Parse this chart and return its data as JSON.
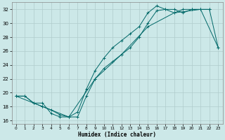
{
  "xlabel": "Humidex (Indice chaleur)",
  "bg_color": "#cce8e8",
  "grid_color": "#b0cccc",
  "line_color": "#006868",
  "xlim": [
    -0.5,
    23.5
  ],
  "ylim": [
    15.5,
    33.0
  ],
  "yticks": [
    16,
    18,
    20,
    22,
    24,
    26,
    28,
    30,
    32
  ],
  "xticks": [
    0,
    1,
    2,
    3,
    4,
    5,
    6,
    7,
    8,
    9,
    10,
    11,
    12,
    13,
    14,
    15,
    16,
    17,
    18,
    19,
    20,
    21,
    22,
    23
  ],
  "line1_x": [
    0,
    1,
    2,
    3,
    4,
    5,
    6,
    7,
    8,
    9,
    10,
    11,
    12,
    13,
    14,
    15,
    16,
    17,
    18,
    19,
    20,
    21,
    22
  ],
  "line1_y": [
    19.5,
    19.5,
    18.5,
    18.0,
    17.5,
    16.8,
    16.5,
    17.2,
    20.5,
    23.2,
    25.0,
    26.5,
    27.5,
    28.5,
    29.5,
    31.5,
    32.5,
    32.0,
    31.5,
    32.0,
    32.0,
    32.0,
    32.0
  ],
  "line2_x": [
    0,
    1,
    2,
    3,
    4,
    5,
    6,
    7,
    8,
    9,
    10,
    11,
    12,
    13,
    14,
    15,
    16,
    17,
    18,
    19,
    20,
    21,
    22,
    23
  ],
  "line2_y": [
    19.5,
    19.5,
    18.5,
    18.5,
    17.0,
    16.5,
    16.5,
    16.5,
    19.5,
    22.0,
    23.5,
    24.5,
    25.5,
    26.5,
    28.0,
    30.0,
    31.8,
    32.0,
    32.0,
    31.5,
    32.0,
    32.0,
    32.0,
    26.5
  ],
  "line3_x": [
    0,
    3,
    6,
    9,
    12,
    15,
    18,
    21,
    23
  ],
  "line3_y": [
    19.5,
    18.0,
    16.5,
    22.0,
    25.5,
    29.5,
    31.5,
    32.0,
    26.5
  ]
}
